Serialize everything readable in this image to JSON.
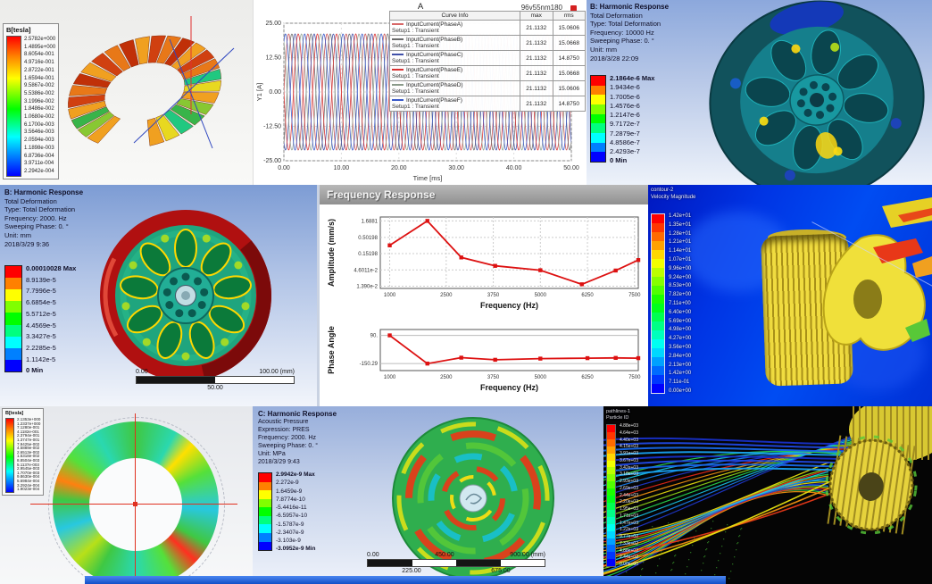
{
  "panels": {
    "flux_torus": {
      "legend_title": "B[tesla]",
      "legend_values": [
        "2.5782e+000",
        "1.4895e+000",
        "8.6054e-001",
        "4.9716e-001",
        "2.8722e-001",
        "1.6594e-001",
        "9.5867e-002",
        "5.5386e-002",
        "3.1996e-002",
        "1.8486e-002",
        "1.0680e-002",
        "6.1700e-003",
        "3.5646e-003",
        "2.0594e-003",
        "1.1898e-003",
        "6.8736e-004",
        "3.9711e-004",
        "2.2942e-004"
      ]
    },
    "current_plot": {
      "window_title": "A",
      "model_label": "96v55nm180",
      "table": {
        "headers": [
          "Curve Info",
          "max",
          "rms"
        ],
        "rows": [
          {
            "name": "InputCurrent(PhaseA)",
            "setup": "Setup1 : Transient",
            "max": "21.1132",
            "rms": "15.0606",
            "color": "#d86868"
          },
          {
            "name": "InputCurrent(PhaseB)",
            "setup": "Setup1 : Transient",
            "max": "21.1132",
            "rms": "15.0668",
            "color": "#6a6a6a"
          },
          {
            "name": "InputCurrent(PhaseC)",
            "setup": "Setup1 : Transient",
            "max": "21.1132",
            "rms": "14.8750",
            "color": "#4050a8"
          },
          {
            "name": "InputCurrent(PhaseE)",
            "setup": "Setup1 : Transient",
            "max": "21.1132",
            "rms": "15.0668",
            "color": "#d83030"
          },
          {
            "name": "InputCurrent(PhaseD)",
            "setup": "Setup1 : Transient",
            "max": "21.1132",
            "rms": "15.0606",
            "color": "#8a9a8a"
          },
          {
            "name": "InputCurrent(PhaseF)",
            "setup": "Setup1 : Transient",
            "max": "21.1132",
            "rms": "14.8750",
            "color": "#3858c8"
          }
        ]
      }
    },
    "harmonic_wheel_10000": {
      "info": [
        "B: Harmonic Response",
        "Total Deformation",
        "Type: Total Deformation",
        "Frequency: 10000 Hz",
        "Sweeping Phase: 0. °",
        "Unit: mm",
        "2018/3/28 22:09"
      ],
      "legend_values": [
        "2.1864e-6 Max",
        "1.9434e-6",
        "1.7005e-6",
        "1.4576e-6",
        "1.2147e-6",
        "9.7172e-7",
        "7.2879e-7",
        "4.8586e-7",
        "2.4293e-7",
        "0 Min"
      ]
    },
    "harmonic_wheel_2000": {
      "info": [
        "B: Harmonic Response",
        "Total Deformation",
        "Type: Total Deformation",
        "Frequency: 2000. Hz",
        "Sweeping Phase: 0. °",
        "Unit: mm",
        "2018/3/29 9:36"
      ],
      "legend_values": [
        "0.00010028 Max",
        "8.9139e-5",
        "7.7996e-5",
        "6.6854e-5",
        "5.5712e-5",
        "4.4569e-5",
        "3.3427e-5",
        "2.2285e-5",
        "1.1142e-5",
        "0 Min"
      ],
      "scale_bar": {
        "left": "0.00",
        "right": "100.00 (mm)",
        "center": "50.00"
      }
    },
    "freq_response_window": {
      "title": "Frequency Response"
    },
    "cfd_velocity": {
      "legend_title_line1": "contour-2",
      "legend_title_line2": "Velocity Magnitude",
      "legend_values": [
        "1.42e+01",
        "1.35e+01",
        "1.28e+01",
        "1.21e+01",
        "1.14e+01",
        "1.07e+01",
        "9.96e+00",
        "9.24e+00",
        "8.53e+00",
        "7.82e+00",
        "7.11e+00",
        "6.40e+00",
        "5.69e+00",
        "4.98e+00",
        "4.27e+00",
        "3.56e+00",
        "2.84e+00",
        "2.13e+00",
        "1.42e+00",
        "7.11e-01",
        "0.00e+00"
      ]
    },
    "flux_stator": {
      "legend_title": "B[tesla]",
      "legend_values": [
        "2.1353e+000",
        "1.2337e+000",
        "7.1280e-001",
        "4.1182e-001",
        "2.3794e-001",
        "1.3747e-001",
        "7.9425e-002",
        "4.5889e-002",
        "2.6513e-002",
        "1.5318e-002",
        "8.8504e-003",
        "5.1137e-003",
        "2.9545e-003",
        "1.7070e-003",
        "9.8630e-004",
        "5.6984e-004",
        "3.2924e-004",
        "1.9023e-004"
      ]
    },
    "acoustic_disc": {
      "info": [
        "C: Harmonic Response",
        "Acoustic Pressure",
        "Expression: PRES",
        "Frequency: 2000. Hz",
        "Sweeping Phase: 0. °",
        "Unit: MPa",
        "2018/3/29 9:43"
      ],
      "legend_values": [
        "2.9942e-9 Max",
        "2.272e-9",
        "1.6459e-9",
        "7.8774e-10",
        "-5.4416e-11",
        "-6.5957e-10",
        "-1.5787e-9",
        "-2.3407e-9",
        "-3.103e-9",
        "-3.0952e-9 Min"
      ],
      "scale_bar": {
        "top_left": "0.00",
        "top_mid": "450.00",
        "top_right": "900.00 (mm)",
        "bottom_left": "225.00",
        "bottom_right": "675.00"
      }
    },
    "particle_tracks": {
      "legend_title_line1": "pathlines-1",
      "legend_title_line2": "Particle ID",
      "legend_values": [
        "4.88e+03",
        "4.64e+03",
        "4.40e+03",
        "4.15e+03",
        "3.91e+03",
        "3.67e+03",
        "3.42e+03",
        "3.18e+03",
        "2.93e+03",
        "2.69e+03",
        "2.44e+03",
        "2.20e+03",
        "1.95e+03",
        "1.71e+03",
        "1.47e+03",
        "1.22e+03",
        "9.77e+02",
        "7.33e+02",
        "4.88e+02",
        "2.44e+02",
        "0.00e+00"
      ]
    }
  },
  "chart_data": [
    {
      "type": "line",
      "title": "A",
      "subtitle": "96v55nm180",
      "xlabel": "Time [ms]",
      "ylabel": "Y1 [A]",
      "xlim": [
        0,
        50
      ],
      "ylim": [
        -25,
        25
      ],
      "xticks": [
        "0.00",
        "10.00",
        "20.00",
        "30.00",
        "40.00",
        "50.00"
      ],
      "yticks": [
        "-25.00",
        "-12.50",
        "0.00",
        "12.50",
        "25.00"
      ],
      "grid": true,
      "legend_position": "top-right-table",
      "series": [
        {
          "name": "InputCurrent(PhaseA)",
          "amplitude": 21.1132,
          "period_ms": 3.3333,
          "phase_deg": 0,
          "color": "#c85050"
        },
        {
          "name": "InputCurrent(PhaseB)",
          "amplitude": 21.1132,
          "period_ms": 3.3333,
          "phase_deg": -60,
          "color": "#6a6a6a"
        },
        {
          "name": "InputCurrent(PhaseC)",
          "amplitude": 21.1132,
          "period_ms": 3.3333,
          "phase_deg": -120,
          "color": "#4050a8"
        },
        {
          "name": "InputCurrent(PhaseE)",
          "amplitude": 21.1132,
          "period_ms": 3.3333,
          "phase_deg": -180,
          "color": "#d83030"
        },
        {
          "name": "InputCurrent(PhaseD)",
          "amplitude": 21.1132,
          "period_ms": 3.3333,
          "phase_deg": -240,
          "color": "#90a090"
        },
        {
          "name": "InputCurrent(PhaseF)",
          "amplitude": 21.1132,
          "period_ms": 3.3333,
          "phase_deg": -300,
          "color": "#3858c8"
        }
      ]
    },
    {
      "type": "line",
      "name": "Amplitude response",
      "xlabel": "Frequency (Hz)",
      "ylabel": "Amplitude (mm/s)",
      "yscale": "log",
      "xlim": [
        750,
        7600
      ],
      "xticks": [
        "1000",
        "2500",
        "3750",
        "5000",
        "6250",
        "7500"
      ],
      "yticks": [
        "1.6881",
        "0.50198",
        "0.15198",
        "4.6011e-2",
        "1.390e-2"
      ],
      "x": [
        1000,
        2000,
        2900,
        3800,
        5000,
        6100,
        7000,
        7600
      ],
      "y": [
        0.28,
        1.6881,
        0.115,
        0.062,
        0.045,
        0.016,
        0.044,
        0.095
      ],
      "color": "#dd1111",
      "marker": "square",
      "grid": true
    },
    {
      "type": "line",
      "name": "Phase response",
      "xlabel": "Frequency (Hz)",
      "ylabel": "Phase Angle",
      "xlim": [
        750,
        7600
      ],
      "ylim": [
        -210,
        140
      ],
      "xticks": [
        "1000",
        "2500",
        "3750",
        "5000",
        "6250",
        "7500"
      ],
      "yticks": [
        "90.",
        "-150.29"
      ],
      "x": [
        1000,
        2000,
        2900,
        3800,
        5000,
        6250,
        7000,
        7600
      ],
      "y": [
        90,
        -150.29,
        -100,
        -118,
        -108,
        -104,
        -102,
        -104
      ],
      "color": "#dd1111",
      "marker": "square",
      "grid": false
    }
  ]
}
